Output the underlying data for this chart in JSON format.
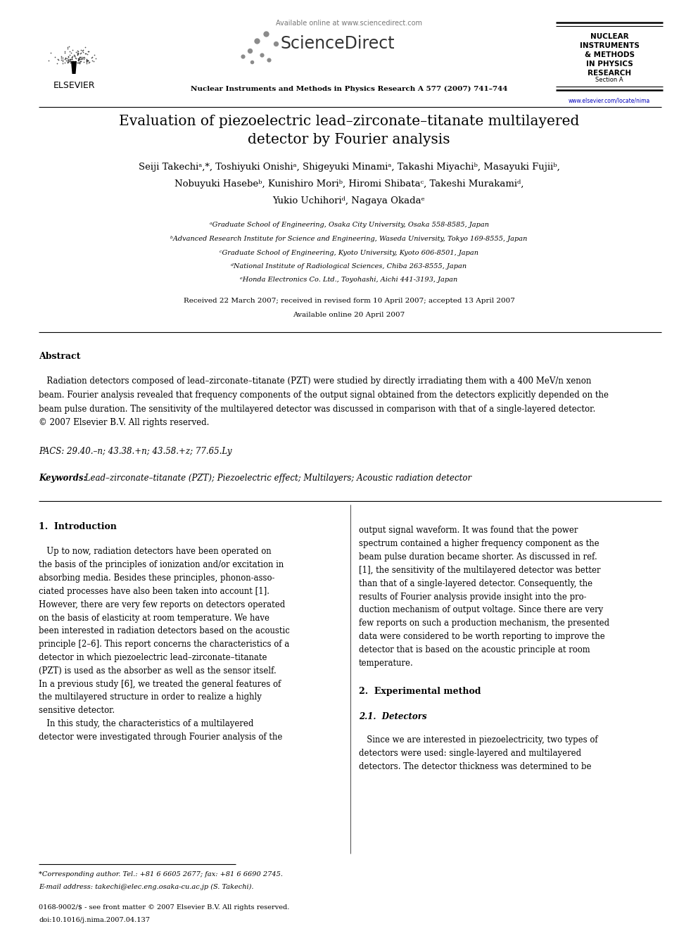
{
  "page_bg": "#ffffff",
  "header": {
    "elsevier_text": "ELSEVIER",
    "available_online": "Available online at www.sciencedirect.com",
    "sciencedirect": "ScienceDirect",
    "journal_name": "Nuclear Instruments and Methods in Physics Research A 577 (2007) 741–744",
    "journal_abbr_lines": [
      "NUCLEAR",
      "INSTRUMENTS",
      "& METHODS",
      "IN PHYSICS",
      "RESEARCH",
      "Section A"
    ],
    "url": "www.elsevier.com/locate/nima"
  },
  "title_line1": "Evaluation of piezoelectric lead–zirconate–titanate multilayered",
  "title_line2": "detector by Fourier analysis",
  "authors_line1": "Seiji Takechiᵃ,*, Toshiyuki Onishiᵃ, Shigeyuki Minamiᵃ, Takashi Miyachiᵇ, Masayuki Fujiiᵇ,",
  "authors_line2": "Nobuyuki Hasebeᵇ, Kunishiro Moriᵇ, Hiromi Shibataᶜ, Takeshi Murakamiᵈ,",
  "authors_line3": "Yukio Uchihoriᵈ, Nagaya Okadaᵉ",
  "affiliations": [
    "ᵃGraduate School of Engineering, Osaka City University, Osaka 558-8585, Japan",
    "ᵇAdvanced Research Institute for Science and Engineering, Waseda University, Tokyo 169-8555, Japan",
    "ᶜGraduate School of Engineering, Kyoto University, Kyoto 606-8501, Japan",
    "ᵈNational Institute of Radiological Sciences, Chiba 263-8555, Japan",
    "ᵉHonda Electronics Co. Ltd., Toyohashi, Aichi 441-3193, Japan"
  ],
  "received": "Received 22 March 2007; received in revised form 10 April 2007; accepted 13 April 2007",
  "available": "Available online 20 April 2007",
  "abstract_title": "Abstract",
  "abstract_text_lines": [
    "   Radiation detectors composed of lead–zirconate–titanate (PZT) were studied by directly irradiating them with a 400 MeV/n xenon",
    "beam. Fourier analysis revealed that frequency components of the output signal obtained from the detectors explicitly depended on the",
    "beam pulse duration. The sensitivity of the multilayered detector was discussed in comparison with that of a single-layered detector.",
    "© 2007 Elsevier B.V. All rights reserved."
  ],
  "pacs": "PACS: 29.40.–n; 43.38.+n; 43.58.+z; 77.65.Ly",
  "keywords_label": "Keywords:",
  "keywords": " Lead–zirconate–titanate (PZT); Piezoelectric effect; Multilayers; Acoustic radiation detector",
  "section1_title": "1.  Introduction",
  "col1_intro_lines": [
    "   Up to now, radiation detectors have been operated on",
    "the basis of the principles of ionization and/or excitation in",
    "absorbing media. Besides these principles, phonon-asso-",
    "ciated processes have also been taken into account [1].",
    "However, there are very few reports on detectors operated",
    "on the basis of elasticity at room temperature. We have",
    "been interested in radiation detectors based on the acoustic",
    "principle [2–6]. This report concerns the characteristics of a",
    "detector in which piezoelectric lead–zirconate–titanate",
    "(PZT) is used as the absorber as well as the sensor itself.",
    "In a previous study [6], we treated the general features of",
    "the multilayered structure in order to realize a highly",
    "sensitive detector.",
    "   In this study, the characteristics of a multilayered",
    "detector were investigated through Fourier analysis of the"
  ],
  "col2_intro_lines": [
    "output signal waveform. It was found that the power",
    "spectrum contained a higher frequency component as the",
    "beam pulse duration became shorter. As discussed in ref.",
    "[1], the sensitivity of the multilayered detector was better",
    "than that of a single-layered detector. Consequently, the",
    "results of Fourier analysis provide insight into the pro-",
    "duction mechanism of output voltage. Since there are very",
    "few reports on such a production mechanism, the presented",
    "data were considered to be worth reporting to improve the",
    "detector that is based on the acoustic principle at room",
    "temperature."
  ],
  "section2_title": "2.  Experimental method",
  "section21_title": "2.1.  Detectors",
  "col2_section21_lines": [
    "   Since we are interested in piezoelectricity, two types of",
    "detectors were used: single-layered and multilayered",
    "detectors. The detector thickness was determined to be"
  ],
  "footnote_star": "*Corresponding author. Tel.: +81 6 6605 2677; fax: +81 6 6690 2745.",
  "footnote_email": "E-mail address: takechi@elec.eng.osaka-cu.ac.jp (S. Takechi).",
  "footer_line1": "0168-9002/$ - see front matter © 2007 Elsevier B.V. All rights reserved.",
  "footer_line2": "doi:10.1016/j.nima.2007.04.137",
  "colors": {
    "black": "#000000",
    "blue_url": "#0000bb",
    "mid_gray": "#777777",
    "dark_gray": "#555555"
  }
}
